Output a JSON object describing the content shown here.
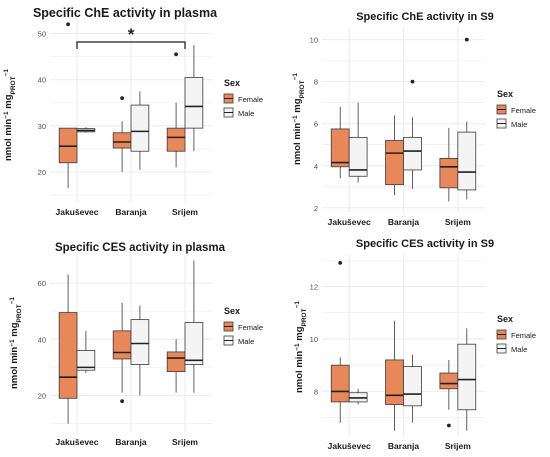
{
  "colors": {
    "female": "#E8875A",
    "male": "#F4F4F4",
    "stroke": "#3a3a3a",
    "grid": "#EBEBEB"
  },
  "legend": {
    "title": "Sex",
    "female": "Female",
    "male": "Male"
  },
  "ylabel_main": "nmol min",
  "ylabel_sup": "−1",
  "ylabel_mg": " mg",
  "ylabel_sub": "PROT",
  "significance": "*",
  "chart_data": [
    {
      "type": "boxplot",
      "title": "Specific ChE activity in plasma",
      "categories": [
        "Jakuševec",
        "Baranja",
        "Srijem"
      ],
      "ylim": [
        13.5,
        52.5
      ],
      "yticks": [
        20,
        30,
        40,
        50
      ],
      "grid": true,
      "legend_position": "right",
      "series": [
        {
          "name": "Female",
          "boxes": [
            {
              "min": 16.5,
              "q1": 22,
              "median": 25.6,
              "q3": 29.5,
              "max": 29.5,
              "outliers": [
                52
              ]
            },
            {
              "min": 20,
              "q1": 25.2,
              "median": 26.5,
              "q3": 28.5,
              "max": 31,
              "outliers": [
                36
              ]
            },
            {
              "min": 21,
              "q1": 24.5,
              "median": 27.5,
              "q3": 29.5,
              "max": 35,
              "outliers": [
                45.5
              ]
            }
          ]
        },
        {
          "name": "Male",
          "boxes": [
            {
              "min": 28.5,
              "q1": 28.7,
              "median": 29,
              "q3": 29.4,
              "max": 29.7,
              "outliers": []
            },
            {
              "min": 20.5,
              "q1": 24.5,
              "median": 28.8,
              "q3": 34.5,
              "max": 37.5,
              "outliers": []
            },
            {
              "min": 24.5,
              "q1": 29.5,
              "median": 34.2,
              "q3": 40.5,
              "max": 47.5,
              "outliers": []
            }
          ]
        }
      ]
    },
    {
      "type": "boxplot",
      "title": "Specific ChE activity in S9",
      "categories": [
        "Jakuševec",
        "Baranja",
        "Srijem"
      ],
      "ylim": [
        1.8,
        10.6
      ],
      "yticks": [
        2,
        4,
        6,
        8,
        10
      ],
      "grid": true,
      "legend_position": "right",
      "series": [
        {
          "name": "Female",
          "boxes": [
            {
              "min": 3.4,
              "q1": 3.95,
              "median": 4.15,
              "q3": 5.75,
              "max": 6.8,
              "outliers": []
            },
            {
              "min": 2.6,
              "q1": 3.1,
              "median": 4.6,
              "q3": 5.2,
              "max": 6.4,
              "outliers": []
            },
            {
              "min": 2.3,
              "q1": 2.95,
              "median": 3.95,
              "q3": 4.35,
              "max": 5.8,
              "outliers": []
            }
          ]
        },
        {
          "name": "Male",
          "boxes": [
            {
              "min": 3.2,
              "q1": 3.5,
              "median": 3.8,
              "q3": 5.35,
              "max": 7.0,
              "outliers": []
            },
            {
              "min": 2.9,
              "q1": 3.8,
              "median": 4.7,
              "q3": 5.35,
              "max": 6.3,
              "outliers": [
                8.0
              ]
            },
            {
              "min": 2.4,
              "q1": 2.85,
              "median": 3.7,
              "q3": 5.6,
              "max": 6.1,
              "outliers": [
                10.0
              ]
            }
          ]
        }
      ]
    },
    {
      "type": "boxplot",
      "title": "Specific CES activity in plasma",
      "categories": [
        "Jakuševec",
        "Baranja",
        "Srijem"
      ],
      "ylim": [
        7,
        70
      ],
      "yticks": [
        20,
        40,
        60
      ],
      "grid": true,
      "legend_position": "right",
      "series": [
        {
          "name": "Female",
          "boxes": [
            {
              "min": 10,
              "q1": 19,
              "median": 26.5,
              "q3": 49.5,
              "max": 63,
              "outliers": []
            },
            {
              "min": 21,
              "q1": 33,
              "median": 35.3,
              "q3": 43,
              "max": 53,
              "outliers": [
                18
              ]
            },
            {
              "min": 21,
              "q1": 28.5,
              "median": 33.3,
              "q3": 35.5,
              "max": 40,
              "outliers": []
            }
          ]
        },
        {
          "name": "Male",
          "boxes": [
            {
              "min": 28,
              "q1": 29,
              "median": 30,
              "q3": 36,
              "max": 43,
              "outliers": []
            },
            {
              "min": 20,
              "q1": 31,
              "median": 38.5,
              "q3": 47,
              "max": 52,
              "outliers": []
            },
            {
              "min": 21,
              "q1": 31,
              "median": 32.5,
              "q3": 46,
              "max": 68,
              "outliers": []
            }
          ]
        }
      ]
    },
    {
      "type": "boxplot",
      "title": "Specific CES activity in S9",
      "categories": [
        "Jakuševec",
        "Baranja",
        "Srijem"
      ],
      "ylim": [
        6.3,
        13.2
      ],
      "yticks": [
        8,
        10,
        12
      ],
      "grid": true,
      "legend_position": "right",
      "series": [
        {
          "name": "Female",
          "boxes": [
            {
              "min": 6.8,
              "q1": 7.6,
              "median": 8.0,
              "q3": 9.0,
              "max": 9.3,
              "outliers": [
                12.9
              ]
            },
            {
              "min": 6.5,
              "q1": 7.5,
              "median": 7.85,
              "q3": 9.2,
              "max": 10.7,
              "outliers": []
            },
            {
              "min": 7.3,
              "q1": 8.1,
              "median": 8.3,
              "q3": 8.7,
              "max": 9.2,
              "outliers": [
                6.7
              ]
            }
          ]
        },
        {
          "name": "Male",
          "boxes": [
            {
              "min": 7.5,
              "q1": 7.6,
              "median": 7.75,
              "q3": 7.95,
              "max": 8.1,
              "outliers": []
            },
            {
              "min": 6.8,
              "q1": 7.45,
              "median": 7.9,
              "q3": 8.95,
              "max": 9.4,
              "outliers": []
            },
            {
              "min": 6.5,
              "q1": 7.3,
              "median": 8.45,
              "q3": 9.8,
              "max": 10.4,
              "outliers": []
            }
          ]
        }
      ]
    }
  ]
}
